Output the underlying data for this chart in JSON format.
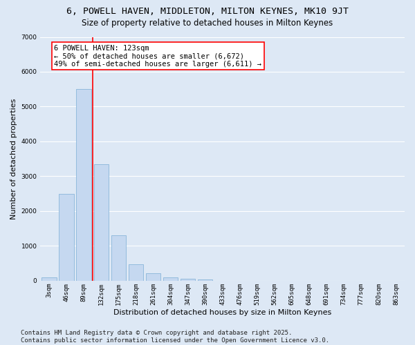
{
  "title1": "6, POWELL HAVEN, MIDDLETON, MILTON KEYNES, MK10 9JT",
  "title2": "Size of property relative to detached houses in Milton Keynes",
  "xlabel": "Distribution of detached houses by size in Milton Keynes",
  "ylabel": "Number of detached properties",
  "categories": [
    "3sqm",
    "46sqm",
    "89sqm",
    "132sqm",
    "175sqm",
    "218sqm",
    "261sqm",
    "304sqm",
    "347sqm",
    "390sqm",
    "433sqm",
    "476sqm",
    "519sqm",
    "562sqm",
    "605sqm",
    "648sqm",
    "691sqm",
    "734sqm",
    "777sqm",
    "820sqm",
    "863sqm"
  ],
  "values": [
    100,
    2500,
    5500,
    3350,
    1300,
    480,
    220,
    100,
    55,
    30,
    0,
    0,
    0,
    0,
    0,
    0,
    0,
    0,
    0,
    0,
    0
  ],
  "bar_color": "#c5d8f0",
  "bar_edge_color": "#7aadd4",
  "background_color": "#dde8f5",
  "grid_color": "#ffffff",
  "vline_color": "red",
  "annotation_text": "6 POWELL HAVEN: 123sqm\n← 50% of detached houses are smaller (6,672)\n49% of semi-detached houses are larger (6,611) →",
  "annotation_fontsize": 7.5,
  "annotation_box_color": "white",
  "annotation_box_edgecolor": "red",
  "footer_text": "Contains HM Land Registry data © Crown copyright and database right 2025.\nContains public sector information licensed under the Open Government Licence v3.0.",
  "ylim": [
    0,
    7000
  ],
  "title_fontsize": 9.5,
  "subtitle_fontsize": 8.5,
  "xlabel_fontsize": 8,
  "ylabel_fontsize": 8,
  "tick_fontsize": 6.5,
  "footer_fontsize": 6.5
}
